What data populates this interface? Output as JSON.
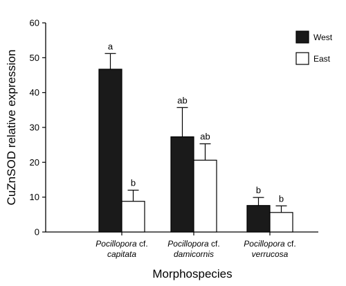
{
  "chart_data": {
    "type": "bar",
    "ylabel": "CuZnSOD relative expression",
    "xlabel": "Morphospecies",
    "ylim": [
      0,
      60
    ],
    "yticks": [
      "0",
      "10",
      "20",
      "30",
      "40",
      "50",
      "60"
    ],
    "grid": false,
    "legend_placement": "top-right",
    "categories": [
      {
        "line1_italic": "Pocillopora",
        "line1_rest": " cf.",
        "line2": "capitata"
      },
      {
        "line1_italic": "Pocillopora",
        "line1_rest": " cf.",
        "line2": "damicornis"
      },
      {
        "line1_italic": "Pocillopora",
        "line1_rest": " cf.",
        "line2": "verrucosa"
      }
    ],
    "series": [
      {
        "name": "West",
        "color": "#1a1a1a",
        "values": [
          46.7,
          27.3,
          7.6
        ],
        "errors": [
          4.5,
          8.4,
          2.3
        ],
        "labels": [
          "a",
          "ab",
          "b"
        ]
      },
      {
        "name": "East",
        "color": "#ffffff",
        "values": [
          8.8,
          20.6,
          5.6
        ],
        "errors": [
          3.2,
          4.7,
          1.9
        ],
        "labels": [
          "b",
          "ab",
          "b"
        ]
      }
    ]
  }
}
